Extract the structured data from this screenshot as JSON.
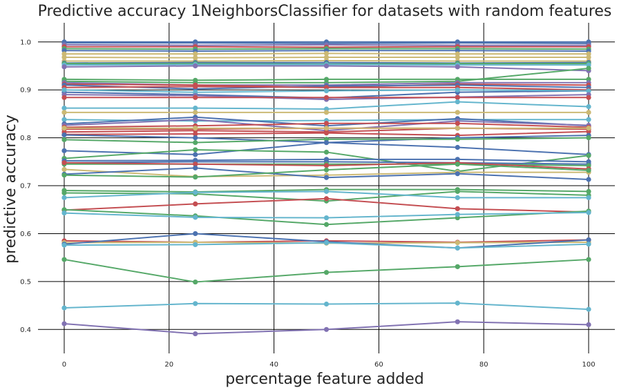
{
  "chart_data": {
    "type": "line",
    "title": "Predictive accuracy 1NeighborsClassifier for datasets with random features",
    "xlabel": "percentage feature added",
    "ylabel": "predictive accuracy",
    "x": [
      0,
      25,
      50,
      75,
      100
    ],
    "xticks": [
      0,
      20,
      40,
      60,
      80,
      100
    ],
    "xtick_labels": [
      "0",
      "20",
      "40",
      "60",
      "80",
      "100"
    ],
    "yticks": [
      0.4,
      0.5,
      0.6,
      0.7,
      0.8,
      0.9,
      1.0
    ],
    "ytick_labels": [
      "0.4",
      "0.5",
      "0.6",
      "0.7",
      "0.8",
      "0.9",
      "1.0"
    ],
    "xlim": [
      -5,
      105
    ],
    "ylim": [
      0.35,
      1.04
    ],
    "grid": true,
    "legend": "none",
    "palette": [
      "#4c72b0",
      "#55a868",
      "#c44e52",
      "#8172b2",
      "#ccb974",
      "#64b5cd"
    ],
    "series": [
      {
        "color": "#4c72b0",
        "values": [
          1.0,
          1.0,
          1.0,
          1.0,
          1.0
        ]
      },
      {
        "color": "#4c72b0",
        "values": [
          0.998,
          0.998,
          0.997,
          0.998,
          0.997
        ]
      },
      {
        "color": "#8172b2",
        "values": [
          0.994,
          0.993,
          0.994,
          0.993,
          0.993
        ]
      },
      {
        "color": "#c44e52",
        "values": [
          0.99,
          0.99,
          0.989,
          0.99,
          0.99
        ]
      },
      {
        "color": "#55a868",
        "values": [
          0.986,
          0.985,
          0.986,
          0.986,
          0.985
        ]
      },
      {
        "color": "#4c72b0",
        "values": [
          0.982,
          0.981,
          0.982,
          0.982,
          0.981
        ]
      },
      {
        "color": "#ccb974",
        "values": [
          0.975,
          0.975,
          0.976,
          0.975,
          0.975
        ]
      },
      {
        "color": "#ccb974",
        "values": [
          0.968,
          0.967,
          0.968,
          0.968,
          0.968
        ]
      },
      {
        "color": "#ccb974",
        "values": [
          0.96,
          0.96,
          0.961,
          0.96,
          0.96
        ]
      },
      {
        "color": "#4c72b0",
        "values": [
          0.956,
          0.957,
          0.957,
          0.956,
          0.957
        ]
      },
      {
        "color": "#55a868",
        "values": [
          0.955,
          0.955,
          0.954,
          0.955,
          0.955
        ]
      },
      {
        "color": "#64b5cd",
        "values": [
          0.952,
          0.953,
          0.953,
          0.952,
          0.952
        ]
      },
      {
        "color": "#8172b2",
        "values": [
          0.948,
          0.95,
          0.95,
          0.948,
          0.94
        ]
      },
      {
        "color": "#55a868",
        "values": [
          0.922,
          0.92,
          0.922,
          0.922,
          0.922
        ]
      },
      {
        "color": "#55a868",
        "values": [
          0.918,
          0.915,
          0.915,
          0.918,
          0.945
        ]
      },
      {
        "color": "#8172b2",
        "values": [
          0.915,
          0.91,
          0.91,
          0.915,
          0.915
        ]
      },
      {
        "color": "#c44e52",
        "values": [
          0.912,
          0.91,
          0.905,
          0.912,
          0.91
        ]
      },
      {
        "color": "#4c72b0",
        "values": [
          0.91,
          0.902,
          0.908,
          0.91,
          0.905
        ]
      },
      {
        "color": "#c44e52",
        "values": [
          0.905,
          0.907,
          0.905,
          0.905,
          0.9
        ]
      },
      {
        "color": "#4c72b0",
        "values": [
          0.895,
          0.89,
          0.883,
          0.895,
          0.898
        ]
      },
      {
        "color": "#64b5cd",
        "values": [
          0.9,
          0.895,
          0.898,
          0.9,
          0.898
        ]
      },
      {
        "color": "#8172b2",
        "values": [
          0.89,
          0.888,
          0.88,
          0.885,
          0.89
        ]
      },
      {
        "color": "#c44e52",
        "values": [
          0.884,
          0.884,
          0.884,
          0.884,
          0.884
        ]
      },
      {
        "color": "#64b5cd",
        "values": [
          0.862,
          0.862,
          0.86,
          0.875,
          0.865
        ]
      },
      {
        "color": "#ccb974",
        "values": [
          0.853,
          0.853,
          0.853,
          0.853,
          0.853
        ]
      },
      {
        "color": "#64b5cd",
        "values": [
          0.838,
          0.835,
          0.836,
          0.838,
          0.838
        ]
      },
      {
        "color": "#4c72b0",
        "values": [
          0.829,
          0.843,
          0.825,
          0.84,
          0.825
        ]
      },
      {
        "color": "#8172b2",
        "values": [
          0.826,
          0.838,
          0.815,
          0.835,
          0.826
        ]
      },
      {
        "color": "#c44e52",
        "values": [
          0.822,
          0.825,
          0.83,
          0.83,
          0.822
        ]
      },
      {
        "color": "#c44e52",
        "values": [
          0.818,
          0.818,
          0.82,
          0.82,
          0.818
        ]
      },
      {
        "color": "#c44e52",
        "values": [
          0.812,
          0.815,
          0.812,
          0.82,
          0.818
        ]
      },
      {
        "color": "#c44e52",
        "values": [
          0.807,
          0.808,
          0.81,
          0.805,
          0.813
        ]
      },
      {
        "color": "#ccb974",
        "values": [
          0.82,
          0.82,
          0.82,
          0.82,
          0.82
        ]
      },
      {
        "color": "#4c72b0",
        "values": [
          0.806,
          0.8,
          0.79,
          0.8,
          0.805
        ]
      },
      {
        "color": "#55a868",
        "values": [
          0.796,
          0.79,
          0.797,
          0.797,
          0.8
        ]
      },
      {
        "color": "#4c72b0",
        "values": [
          0.773,
          0.765,
          0.79,
          0.78,
          0.765
        ]
      },
      {
        "color": "#55a868",
        "values": [
          0.757,
          0.775,
          0.77,
          0.73,
          0.763
        ]
      },
      {
        "color": "#4c72b0",
        "values": [
          0.752,
          0.753,
          0.755,
          0.755,
          0.75
        ]
      },
      {
        "color": "#4c72b0",
        "values": [
          0.748,
          0.75,
          0.75,
          0.748,
          0.745
        ]
      },
      {
        "color": "#55a868",
        "values": [
          0.745,
          0.745,
          0.745,
          0.745,
          0.742
        ]
      },
      {
        "color": "#c44e52",
        "values": [
          0.748,
          0.745,
          0.742,
          0.748,
          0.735
        ]
      },
      {
        "color": "#ccb974",
        "values": [
          0.734,
          0.719,
          0.722,
          0.728,
          0.728
        ]
      },
      {
        "color": "#4c72b0",
        "values": [
          0.724,
          0.737,
          0.717,
          0.725,
          0.713
        ]
      },
      {
        "color": "#55a868",
        "values": [
          0.722,
          0.718,
          0.733,
          0.745,
          0.732
        ]
      },
      {
        "color": "#55a868",
        "values": [
          0.69,
          0.687,
          0.692,
          0.692,
          0.688
        ]
      },
      {
        "color": "#55a868",
        "values": [
          0.685,
          0.683,
          0.668,
          0.688,
          0.68
        ]
      },
      {
        "color": "#64b5cd",
        "values": [
          0.675,
          0.686,
          0.688,
          0.675,
          0.675
        ]
      },
      {
        "color": "#c44e52",
        "values": [
          0.649,
          0.662,
          0.673,
          0.652,
          0.645
        ]
      },
      {
        "color": "#55a868",
        "values": [
          0.65,
          0.637,
          0.619,
          0.633,
          0.647
        ]
      },
      {
        "color": "#64b5cd",
        "values": [
          0.643,
          0.634,
          0.633,
          0.64,
          0.644
        ]
      },
      {
        "color": "#c44e52",
        "values": [
          0.585,
          0.582,
          0.585,
          0.582,
          0.587
        ]
      },
      {
        "color": "#ccb974",
        "values": [
          0.581,
          0.582,
          0.58,
          0.581,
          0.582
        ]
      },
      {
        "color": "#4c72b0",
        "values": [
          0.578,
          0.6,
          0.583,
          0.57,
          0.587
        ]
      },
      {
        "color": "#64b5cd",
        "values": [
          0.576,
          0.577,
          0.581,
          0.57,
          0.578
        ]
      },
      {
        "color": "#55a868",
        "values": [
          0.546,
          0.499,
          0.519,
          0.531,
          0.546
        ]
      },
      {
        "color": "#64b5cd",
        "values": [
          0.445,
          0.454,
          0.453,
          0.455,
          0.442
        ]
      },
      {
        "color": "#8172b2",
        "values": [
          0.412,
          0.391,
          0.4,
          0.416,
          0.41
        ]
      }
    ]
  }
}
